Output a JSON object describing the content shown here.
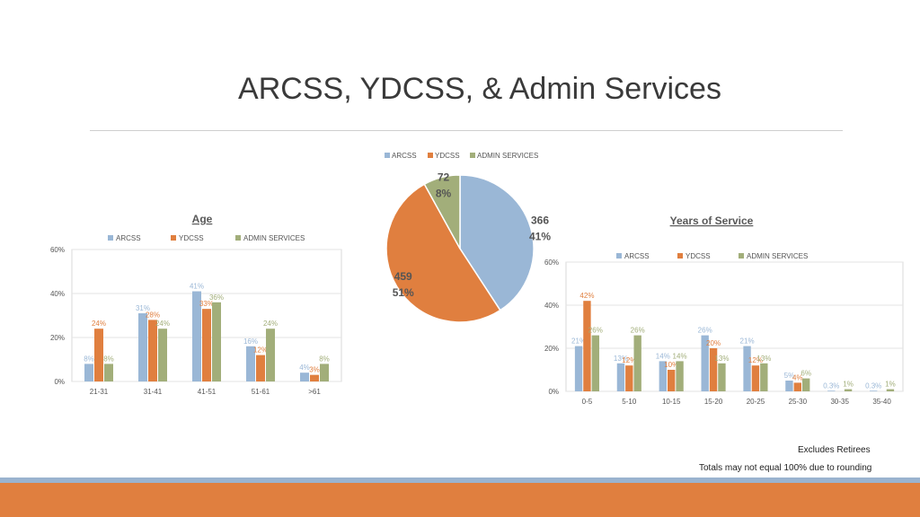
{
  "slide_title": "ARCSS, YDCSS, & Admin Services",
  "notes": {
    "retirees": "Excludes Retirees",
    "rounding": "Totals may not equal 100% due to rounding"
  },
  "colors": {
    "arcss": "#9ab7d6",
    "ydcss": "#e07f3f",
    "admin": "#a2ae7a",
    "band_blue": "#9ab3cf",
    "band_orange": "#e07f3f"
  },
  "chart_data": [
    {
      "id": "age",
      "type": "bar",
      "title": "Age",
      "categories": [
        "21-31",
        "31-41",
        "41-51",
        "51-61",
        ">61"
      ],
      "series": [
        {
          "name": "ARCSS",
          "values": [
            8,
            31,
            41,
            16,
            4
          ],
          "labels": [
            "8%",
            "31%",
            "41%",
            "16%",
            "4%"
          ]
        },
        {
          "name": "YDCSS",
          "values": [
            24,
            28,
            33,
            12,
            3
          ],
          "labels": [
            "24%",
            "28%",
            "33%",
            "12%",
            "3%"
          ]
        },
        {
          "name": "ADMIN SERVICES",
          "values": [
            8,
            24,
            36,
            24,
            8
          ],
          "labels": [
            "8%",
            "24%",
            "36%",
            "24%",
            "8%"
          ]
        }
      ],
      "yticks": [
        "0%",
        "20%",
        "40%",
        "60%"
      ],
      "ylim": [
        0,
        60
      ],
      "grid": true,
      "legend": "top"
    },
    {
      "id": "distribution",
      "type": "pie",
      "title": "",
      "slices": [
        {
          "name": "ARCSS",
          "value": 366,
          "pct": "41%"
        },
        {
          "name": "YDCSS",
          "value": 459,
          "pct": "51%"
        },
        {
          "name": "ADMIN SERVICES",
          "value": 72,
          "pct": "8%"
        }
      ],
      "legend": "top"
    },
    {
      "id": "service",
      "type": "bar",
      "title": "Years of Service",
      "categories": [
        "0-5",
        "5-10",
        "10-15",
        "15-20",
        "20-25",
        "25-30",
        "30-35",
        "35-40"
      ],
      "series": [
        {
          "name": "ARCSS",
          "values": [
            21,
            13,
            14,
            26,
            21,
            5,
            0.3,
            0.3
          ],
          "labels": [
            "21%",
            "13%",
            "14%",
            "26%",
            "21%",
            "5%",
            "0.3%",
            "0.3%"
          ]
        },
        {
          "name": "YDCSS",
          "values": [
            42,
            12,
            10,
            20,
            12,
            4,
            0,
            0
          ],
          "labels": [
            "42%",
            "12%",
            "10%",
            "20%",
            "12%",
            "4%",
            "",
            ""
          ]
        },
        {
          "name": "ADMIN SERVICES",
          "values": [
            26,
            26,
            14,
            13,
            13,
            6,
            1,
            1
          ],
          "labels": [
            "26%",
            "26%",
            "14%",
            "13%",
            "13%",
            "6%",
            "1%",
            "1%"
          ]
        }
      ],
      "yticks": [
        "0%",
        "20%",
        "40%",
        "60%"
      ],
      "ylim": [
        0,
        60
      ],
      "grid": true,
      "legend": "top"
    }
  ]
}
